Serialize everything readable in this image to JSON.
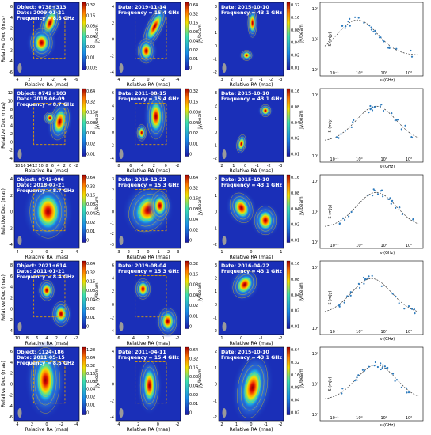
{
  "axis_labels": {
    "ra": "Relative RA (mas)",
    "dec": "Relative Dec (mas)",
    "jybeam": "Jy/beam",
    "flux": "S (mJy)",
    "freq": "ν (GHz)"
  },
  "rows": [
    {
      "object": "Object: 0738+313",
      "panels": [
        {
          "date": "Date: 2009-01-21",
          "freq": "Frequency = 8.6 GHz",
          "xticks": [
            "4",
            "2",
            "0",
            "-2",
            "-4",
            "-6"
          ],
          "yticks": [
            "6",
            "4",
            "2",
            "0",
            "-2",
            "-4",
            "-6"
          ],
          "cbticks": [
            "0.32",
            "0.16",
            "0.08",
            "0.04",
            "0.02",
            "0.01",
            "0.005"
          ]
        },
        {
          "date": "Date: 2019-11-14",
          "freq": "Frequency = 15.4 GHz",
          "xticks": [
            "4",
            "2",
            "0",
            "-2",
            "-4"
          ],
          "yticks": [
            "4",
            "2",
            "0",
            "-2",
            "-4"
          ],
          "cbticks": [
            "0.64",
            "0.32",
            "0.16",
            "0.08",
            "0.04",
            "0.02",
            "0.01",
            "0"
          ]
        },
        {
          "date": "Date: 2015-10-10",
          "freq": "Frequency = 43.1 GHz",
          "xticks": [
            "3",
            "2",
            "1",
            "0",
            "-1",
            "-2",
            "-3"
          ],
          "yticks": [
            "3",
            "2",
            "1",
            "0",
            "-1",
            "-2"
          ],
          "cbticks": [
            "0.32",
            "0.16",
            "0.08",
            "0.04",
            "0.02",
            "0.01"
          ]
        }
      ],
      "sed": {
        "yticks": [
          "10³",
          "10²",
          "10¹"
        ],
        "xticks": [
          "10⁻¹",
          "10⁰",
          "10¹",
          "10²"
        ]
      }
    },
    {
      "object": "Object: 0742+103",
      "panels": [
        {
          "date": "Date: 2018-06-09",
          "freq": "Frequency = 8.7 GHz",
          "xticks": [
            "18",
            "16",
            "14",
            "12",
            "10",
            "8",
            "6",
            "4",
            "2",
            "0",
            "-2"
          ],
          "yticks": [
            "12",
            "10",
            "8",
            "6",
            "4",
            "2",
            "0",
            "-2",
            "-4"
          ],
          "cbticks": [
            "0.64",
            "0.32",
            "0.16",
            "0.08",
            "0.04",
            "0.02",
            "0.01"
          ]
        },
        {
          "date": "Date: 2011-08-15",
          "freq": "Frequency = 15.4 GHz",
          "xticks": [
            "8",
            "6",
            "4",
            "2",
            "0",
            "-2"
          ],
          "yticks": [
            "6",
            "4",
            "2",
            "0",
            "-2",
            "-4"
          ],
          "cbticks": [
            "0.32",
            "0.16",
            "0.08",
            "0.04",
            "0.02",
            "0.01",
            "0"
          ]
        },
        {
          "date": "Date: 2015-10-10",
          "freq": "Frequency = 43.1 GHz",
          "xticks": [
            "2",
            "1",
            "0",
            "-1",
            "-2",
            "-3"
          ],
          "yticks": [
            "3",
            "2",
            "1",
            "0",
            "-1",
            "-2"
          ],
          "cbticks": [
            "0.16",
            "0.08",
            "0.04",
            "0.02",
            "0.01"
          ]
        }
      ],
      "sed": {
        "yticks": [
          "10²",
          "10¹"
        ],
        "xticks": [
          "10⁻¹",
          "10⁰",
          "10¹",
          "10²"
        ]
      }
    },
    {
      "object": "Object: 0743-006",
      "panels": [
        {
          "date": "Date: 2018-07-21",
          "freq": "Frequency = 8.7 GHz",
          "xticks": [
            "4",
            "2",
            "0",
            "-2",
            "-4"
          ],
          "yticks": [
            "4",
            "2",
            "0",
            "-2",
            "-4"
          ],
          "cbticks": [
            "0.64",
            "0.32",
            "0.16",
            "0.08",
            "0.04",
            "0.02",
            "0.01",
            "0"
          ]
        },
        {
          "date": "Date: 2019-12-22",
          "freq": "Frequency = 15.3 GHz",
          "xticks": [
            "3",
            "2",
            "1",
            "0",
            "-1",
            "-2",
            "-3"
          ],
          "yticks": [
            "3",
            "2",
            "1",
            "0",
            "-1",
            "-2",
            "-3"
          ],
          "cbticks": [
            "0.64",
            "0.32",
            "0.16",
            "0.08",
            "0.04",
            "0.02",
            "0"
          ]
        },
        {
          "date": "Date: 2015-10-10",
          "freq": "Frequency = 43.1 GHz",
          "xticks": [
            "1",
            "0",
            "-1"
          ],
          "yticks": [
            "2",
            "1",
            "0",
            "-1",
            "-2"
          ],
          "cbticks": [
            "0.16",
            "0.08",
            "0.04",
            "0.02",
            "0.01"
          ]
        }
      ],
      "sed": {
        "yticks": [
          "10³",
          "10²",
          "10¹"
        ],
        "xticks": [
          "10⁻¹",
          "10⁰",
          "10¹",
          "10²"
        ]
      }
    },
    {
      "object": "Object: 2021+614",
      "panels": [
        {
          "date": "Date: 2011-01-21",
          "freq": "Frequency = 8.4 GHz",
          "xticks": [
            "10",
            "8",
            "6",
            "4",
            "2",
            "0",
            "-2"
          ],
          "yticks": [
            "8",
            "6",
            "4",
            "2",
            "0",
            "-2",
            "-4"
          ],
          "cbticks": [
            "0.64",
            "0.32",
            "0.16",
            "0.08",
            "0.04",
            "0.02",
            "0.01",
            "0"
          ]
        },
        {
          "date": "Date: 2019-08-04",
          "freq": "Frequency = 15.3 GHz",
          "xticks": [
            "6",
            "4",
            "2",
            "0",
            "-2"
          ],
          "yticks": [
            "6",
            "4",
            "2",
            "0",
            "-2",
            "-4"
          ],
          "cbticks": [
            "0.32",
            "0.16",
            "0.08",
            "0.04",
            "0.02",
            "0.01",
            "0"
          ]
        },
        {
          "date": "Date: 2016-04-22",
          "freq": "Frequency = 43.1 GHz",
          "xticks": [
            "1",
            "0",
            "-1",
            "-2"
          ],
          "yticks": [
            "3",
            "2",
            "1",
            "0",
            "-1",
            "-2"
          ],
          "cbticks": [
            "0.16",
            "0.08",
            "0.04",
            "0.02",
            "0.01"
          ]
        }
      ],
      "sed": {
        "yticks": [
          "10³",
          "10²"
        ],
        "xticks": [
          "10⁻¹",
          "10⁰",
          "10¹",
          "10²"
        ]
      }
    },
    {
      "object": "Object: 1124-186",
      "panels": [
        {
          "date": "Date: 2011-05-15",
          "freq": "Frequency = 8.6 GHz",
          "xticks": [
            "4",
            "2",
            "0",
            "-2",
            "-4"
          ],
          "yticks": [
            "6",
            "4",
            "2",
            "0",
            "-2",
            "-4",
            "-6"
          ],
          "cbticks": [
            "1.28",
            "0.64",
            "0.32",
            "0.16",
            "0.08",
            "0.04",
            "0.02",
            "0.01",
            "0"
          ]
        },
        {
          "date": "Date: 2011-04-11",
          "freq": "Frequency = 15.4 GHz",
          "xticks": [
            "4",
            "2",
            "0",
            "-2"
          ],
          "yticks": [
            "4",
            "2",
            "0",
            "-2",
            "-4"
          ],
          "cbticks": [
            "0.64",
            "0.32",
            "0.16",
            "0.08",
            "0.04",
            "0.02",
            "0.01",
            "0"
          ]
        },
        {
          "date": "Date: 2015-10-10",
          "freq": "Frequency = 43.1 GHz",
          "xticks": [
            "2",
            "1",
            "0",
            "-1",
            "-2"
          ],
          "yticks": [
            "2",
            "1",
            "0",
            "-1",
            "-2"
          ],
          "cbticks": [
            "0.64",
            "0.32",
            "0.16",
            "0.08",
            "0.04",
            "0.02"
          ]
        }
      ],
      "sed": {
        "yticks": [
          "10³",
          "10²",
          "10¹"
        ],
        "xticks": [
          "10⁻¹",
          "10⁰",
          "10¹",
          "10²"
        ]
      }
    }
  ],
  "colors": {
    "map_bg": "#1a2fb8",
    "core": "#d60000",
    "contour": "#f2d000",
    "box": "#e0a000",
    "sed_point": "#2e7bbd",
    "sed_fit": "#333333"
  }
}
